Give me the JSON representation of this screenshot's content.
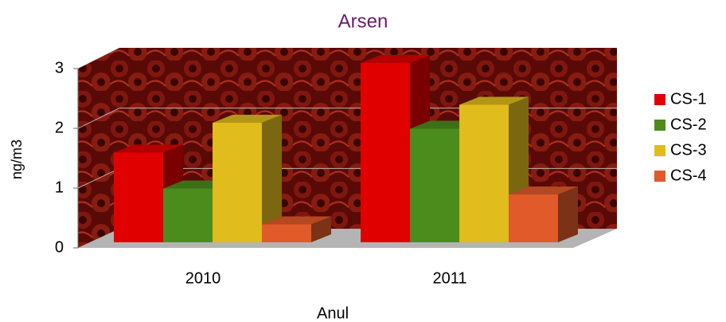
{
  "chart_data": {
    "type": "bar3d",
    "title": "Arsen",
    "x_label": "Anul",
    "y_label": "ng/m3",
    "categories": [
      "2010",
      "2011"
    ],
    "series": [
      {
        "name": "CS-1",
        "color": "#e00000",
        "values": [
          1.5,
          3.0
        ]
      },
      {
        "name": "CS-2",
        "color": "#4c8c1c",
        "values": [
          0.9,
          1.9
        ]
      },
      {
        "name": "CS-3",
        "color": "#e0bc1c",
        "values": [
          2.0,
          2.3
        ]
      },
      {
        "name": "CS-4",
        "color": "#e05a2a",
        "values": [
          0.3,
          0.8
        ]
      }
    ],
    "ylim": [
      0,
      3
    ],
    "yticks": [
      0,
      1,
      2,
      3
    ],
    "grid": true,
    "legend": "right"
  }
}
